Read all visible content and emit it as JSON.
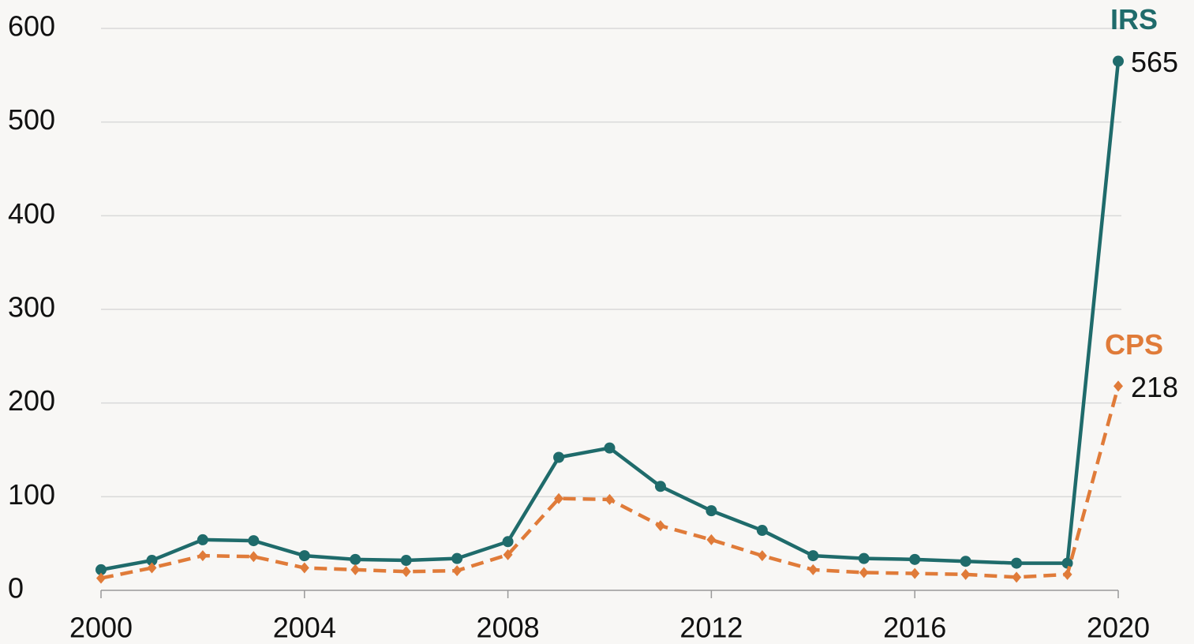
{
  "chart_data": {
    "type": "line",
    "x": [
      2000,
      2001,
      2002,
      2003,
      2004,
      2005,
      2006,
      2007,
      2008,
      2009,
      2010,
      2011,
      2012,
      2013,
      2014,
      2015,
      2016,
      2017,
      2018,
      2019,
      2020
    ],
    "series": [
      {
        "name": "IRS",
        "color": "#1f6b6b",
        "marker": "circle",
        "dashed": false,
        "values": [
          22,
          32,
          54,
          53,
          37,
          33,
          32,
          34,
          52,
          142,
          152,
          111,
          85,
          64,
          37,
          34,
          33,
          31,
          29,
          29,
          565
        ]
      },
      {
        "name": "CPS",
        "color": "#e07b39",
        "marker": "diamond",
        "dashed": true,
        "values": [
          13,
          24,
          37,
          36,
          24,
          22,
          20,
          21,
          38,
          98,
          97,
          69,
          54,
          37,
          22,
          19,
          18,
          17,
          14,
          17,
          218
        ]
      }
    ],
    "xlim": [
      2000,
      2020
    ],
    "xticks": [
      2000,
      2004,
      2008,
      2012,
      2016,
      2020
    ],
    "ylim": [
      0,
      600
    ],
    "yticks": [
      0,
      100,
      200,
      300,
      400,
      500,
      600
    ],
    "grid": true,
    "label_last": true
  }
}
